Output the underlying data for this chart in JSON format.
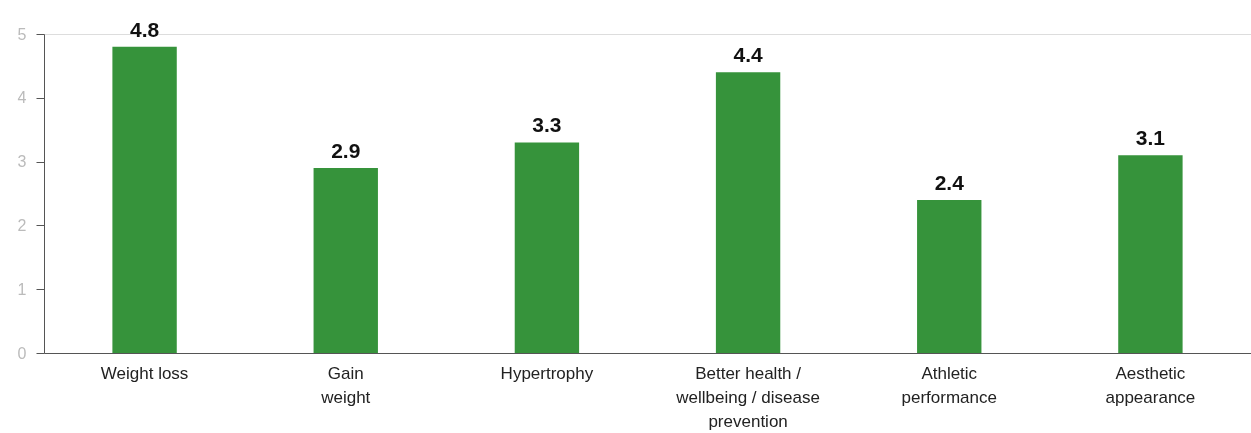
{
  "chart_data": {
    "type": "bar",
    "categories": [
      "Weight loss",
      "Gain\nweight",
      "Hypertrophy",
      "Better health /\nwellbeing / disease\nprevention",
      "Athletic\nperformance",
      "Aesthetic\nappearance"
    ],
    "values": [
      4.8,
      2.9,
      3.3,
      4.4,
      2.4,
      3.1
    ],
    "color": "#36933b",
    "ylim": [
      0,
      5
    ],
    "yticks": [
      0,
      1,
      2,
      3,
      4,
      5
    ],
    "grid": false,
    "data_labels": true
  }
}
